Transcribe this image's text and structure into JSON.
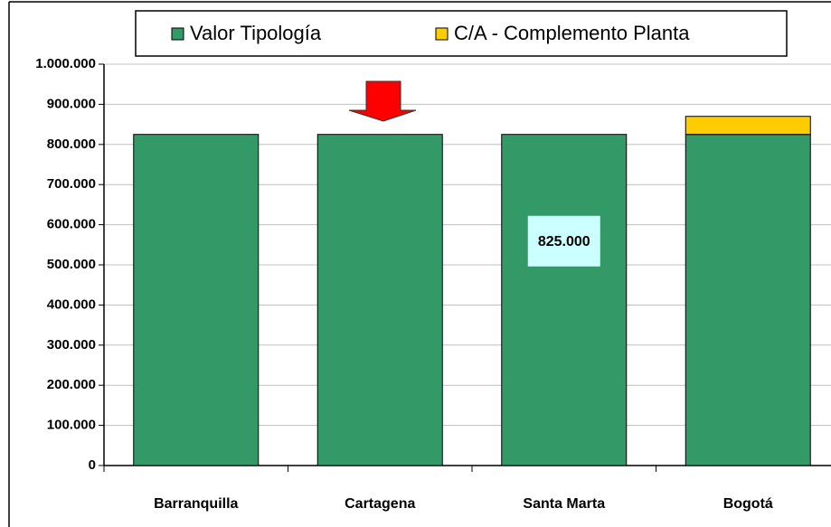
{
  "chart_data": {
    "type": "stacked_bar",
    "categories": [
      "Barranquilla",
      "Cartagena",
      "Santa Marta",
      "Bogotá"
    ],
    "series": [
      {
        "name": "Valor Tipología",
        "color": "#339966",
        "values": [
          825000,
          825000,
          825000,
          825000
        ],
        "value_labels": [
          null,
          null,
          "825.000",
          null
        ]
      },
      {
        "name": "C/A - Complemento Planta",
        "color": "#ffcc00",
        "values": [
          0,
          0,
          0,
          45000
        ]
      }
    ],
    "ylim": [
      0,
      1000000
    ],
    "yticks": [
      0,
      {
        "value": 100000,
        "label": "100.000"
      },
      {
        "value": 200000,
        "label": "200.000"
      },
      {
        "value": 300000,
        "label": "300.000"
      },
      {
        "value": 400000,
        "label": "400.000"
      },
      {
        "value": 500000,
        "label": "500.000"
      },
      {
        "value": 600000,
        "label": "600.000"
      },
      {
        "value": 700000,
        "label": "700.000"
      },
      {
        "value": 800000,
        "label": "800.000"
      },
      {
        "value": 900000,
        "label": "900.000"
      },
      {
        "value": 1000000,
        "label": "1.000.000"
      }
    ],
    "grid": true,
    "legend": "top"
  }
}
